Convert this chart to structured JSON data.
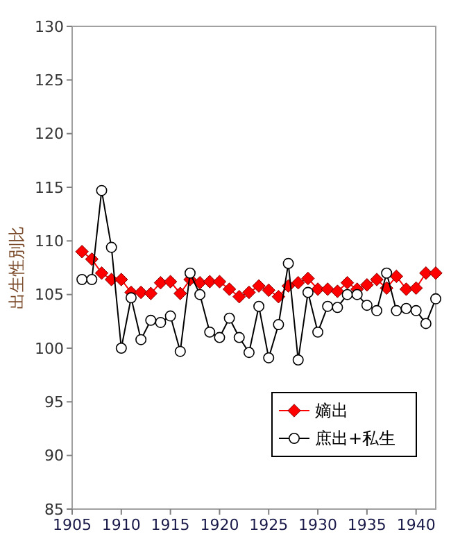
{
  "chart_data": {
    "type": "line",
    "ylabel": "出生性別比",
    "x": [
      1906,
      1907,
      1908,
      1909,
      1910,
      1911,
      1912,
      1913,
      1914,
      1915,
      1916,
      1917,
      1918,
      1919,
      1920,
      1921,
      1922,
      1923,
      1924,
      1925,
      1926,
      1927,
      1928,
      1929,
      1930,
      1931,
      1932,
      1933,
      1934,
      1935,
      1936,
      1937,
      1938,
      1939,
      1940,
      1941,
      1942
    ],
    "series": [
      {
        "name": "嫡出",
        "color": "#ff0000",
        "marker": "diamond",
        "values": [
          109.0,
          108.3,
          107.0,
          106.4,
          106.4,
          105.2,
          105.2,
          105.1,
          106.1,
          106.2,
          105.1,
          106.4,
          106.1,
          106.2,
          106.2,
          105.5,
          104.8,
          105.2,
          105.8,
          105.4,
          104.8,
          105.8,
          106.1,
          106.5,
          105.5,
          105.5,
          105.3,
          106.1,
          105.5,
          105.9,
          106.4,
          105.6,
          106.7,
          105.5,
          105.6,
          107.0,
          107.0
        ]
      },
      {
        "name": "庶出+私生",
        "color": "#000000",
        "marker": "circle",
        "values": [
          106.4,
          106.4,
          114.7,
          109.4,
          100.0,
          104.7,
          100.8,
          102.6,
          102.4,
          103.0,
          99.7,
          107.0,
          105.0,
          101.5,
          101.0,
          102.8,
          101.0,
          99.6,
          103.9,
          99.1,
          102.2,
          107.9,
          98.9,
          105.2,
          101.5,
          103.9,
          103.8,
          105.0,
          105.0,
          104.0,
          103.5,
          107.0,
          103.5,
          103.7,
          103.5,
          102.3,
          104.6
        ]
      }
    ],
    "xlim": [
      1905,
      1942
    ],
    "xticks": [
      1905,
      1910,
      1915,
      1920,
      1925,
      1930,
      1935,
      1940
    ],
    "ylim": [
      85,
      130
    ],
    "yticks": [
      85,
      90,
      95,
      100,
      105,
      110,
      115,
      120,
      125,
      130
    ],
    "legend": "bottom right",
    "grid": false
  }
}
